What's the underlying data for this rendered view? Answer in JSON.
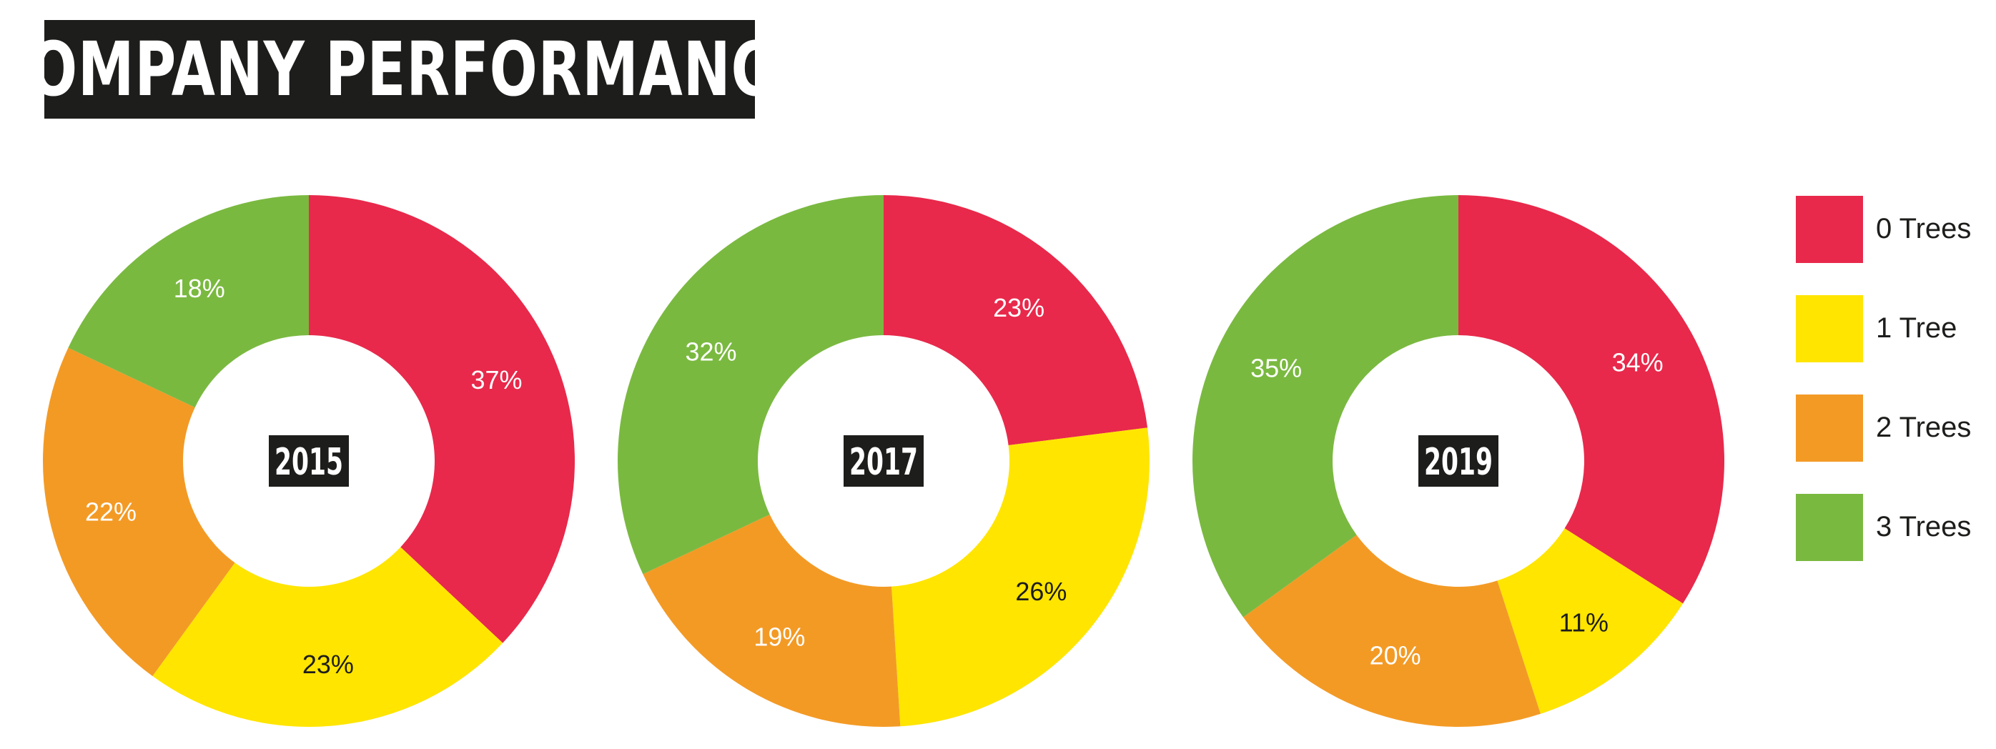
{
  "header": {
    "title": "COMPANY PERFORMANCE"
  },
  "colors": {
    "0 Trees": "#e8294b",
    "1 Tree": "#ffe500",
    "2 Trees": "#f39a25",
    "3 Trees": "#7ab940"
  },
  "legend": {
    "items": [
      {
        "label": "0 Trees",
        "color": "#e8294b"
      },
      {
        "label": "1 Tree",
        "color": "#ffe500"
      },
      {
        "label": "2 Trees",
        "color": "#f39a25"
      },
      {
        "label": "3 Trees",
        "color": "#7ab940"
      }
    ],
    "placement": "right"
  },
  "chart_data": [
    {
      "type": "pie",
      "title": "2015",
      "categories": [
        "0 Trees",
        "1 Tree",
        "2 Trees",
        "3 Trees"
      ],
      "values": [
        37,
        23,
        22,
        18
      ],
      "labels": [
        "37%",
        "23%",
        "22%",
        "18%"
      ]
    },
    {
      "type": "pie",
      "title": "2017",
      "categories": [
        "0 Trees",
        "1 Tree",
        "2 Trees",
        "3 Trees"
      ],
      "values": [
        23,
        26,
        19,
        32
      ],
      "labels": [
        "23%",
        "26%",
        "19%",
        "32%"
      ]
    },
    {
      "type": "pie",
      "title": "2019",
      "categories": [
        "0 Trees",
        "1 Tree",
        "2 Trees",
        "3 Trees"
      ],
      "values": [
        34,
        11,
        20,
        35
      ],
      "labels": [
        "34%",
        "11%",
        "20%",
        "35%"
      ]
    }
  ]
}
